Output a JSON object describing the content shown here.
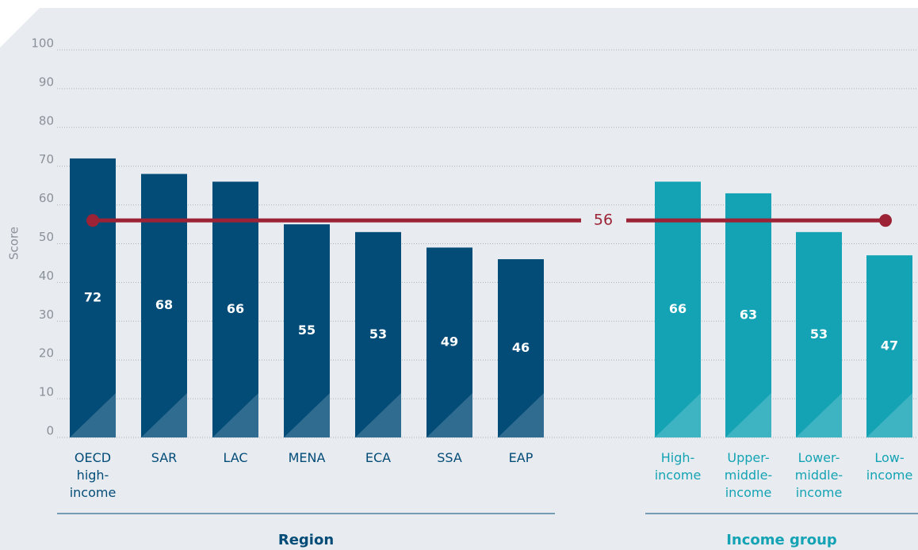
{
  "chart_data": {
    "type": "bar",
    "y_label": "Score",
    "ylim": [
      0,
      100
    ],
    "yticks": [
      0,
      10,
      20,
      30,
      40,
      50,
      60,
      70,
      80,
      90,
      100
    ],
    "grid": true,
    "average": 56,
    "average_color": "#9b2335",
    "groups": [
      {
        "name": "Region",
        "color": "#034c78",
        "categories": [
          "OECD high-income",
          "SAR",
          "LAC",
          "MENA",
          "ECA",
          "SSA",
          "EAP"
        ],
        "values": [
          72,
          68,
          66,
          55,
          53,
          49,
          46
        ]
      },
      {
        "name": "Income group",
        "color": "#14a3b4",
        "categories": [
          "High-income",
          "Upper-middle-income",
          "Lower-middle-income",
          "Low-income"
        ],
        "values": [
          66,
          63,
          53,
          47
        ]
      }
    ]
  }
}
